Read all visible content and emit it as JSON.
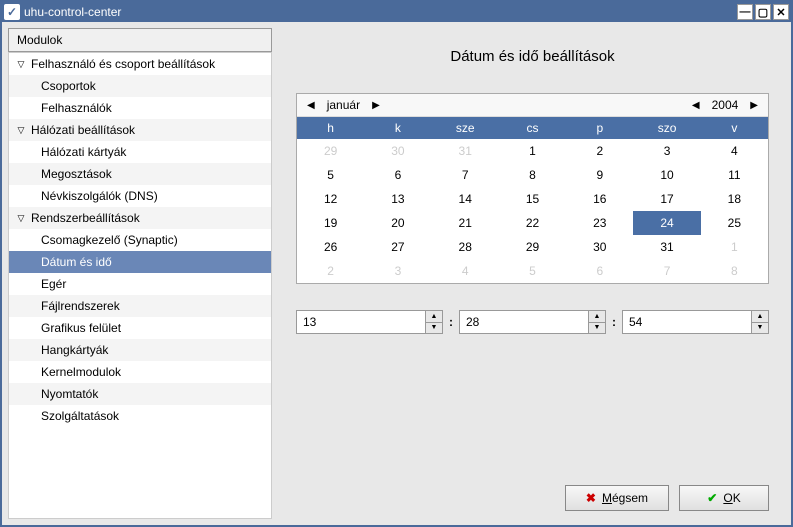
{
  "window": {
    "title": "uhu-control-center"
  },
  "sidebar": {
    "header": "Modulok",
    "groups": [
      {
        "label": "Felhasználó és csoport beállítások",
        "items": [
          "Csoportok",
          "Felhasználók"
        ]
      },
      {
        "label": "Hálózati beállítások",
        "items": [
          "Hálózati kártyák",
          "Megosztások",
          "Névkiszolgálók (DNS)"
        ]
      },
      {
        "label": "Rendszerbeállítások",
        "items": [
          "Csomagkezelő (Synaptic)",
          "Dátum és idő",
          "Egér",
          "Fájlrendszerek",
          "Grafikus felület",
          "Hangkártyák",
          "Kernelmodulok",
          "Nyomtatók",
          "Szolgáltatások"
        ]
      }
    ],
    "selected": "Dátum és idő"
  },
  "page": {
    "title": "Dátum és idő beállítások"
  },
  "calendar": {
    "month": "január",
    "year": "2004",
    "weekdays": [
      "h",
      "k",
      "sze",
      "cs",
      "p",
      "szo",
      "v"
    ],
    "leading": [
      29,
      30,
      31
    ],
    "days": 31,
    "trailing": [
      1,
      2,
      3,
      4,
      5,
      6,
      7,
      8
    ],
    "selected": 24
  },
  "time": {
    "hour": "13",
    "minute": "28",
    "second": "54"
  },
  "buttons": {
    "cancel": "Mégsem",
    "ok": "OK"
  },
  "colors": {
    "titlebar": "#4a6a9a",
    "selection": "#6a87b7",
    "cal_header": "#4a6fa5",
    "bg": "#e8e8e8",
    "disabled_text": "#cccccc"
  }
}
